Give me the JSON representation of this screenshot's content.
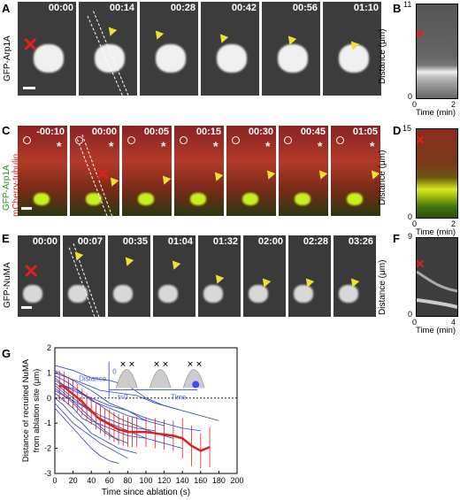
{
  "panel_letters": {
    "a": "A",
    "b": "B",
    "c": "C",
    "d": "D",
    "e": "E",
    "f": "F",
    "g": "G"
  },
  "panel_a": {
    "side_label": "GFP-Arp1A",
    "times": [
      "00:00",
      "00:14",
      "00:28",
      "00:42",
      "00:56",
      "01:10"
    ]
  },
  "panel_b": {
    "ylabel": "Distance (μm)",
    "xlabel": "Time (min)",
    "yticks": [
      "11",
      "0"
    ],
    "xticks": [
      "0",
      "2"
    ]
  },
  "panel_c": {
    "side_label_top": "GFP-Arp1A",
    "side_label_bottom": "mCherry-tubulin",
    "times": [
      "-00:10",
      "00:00",
      "00:05",
      "00:15",
      "00:30",
      "00:45",
      "01:05"
    ]
  },
  "panel_d": {
    "ylabel": "Distance (μm)",
    "xlabel": "Time (min)",
    "yticks": [
      "15",
      "0"
    ],
    "xticks": [
      "0",
      "2"
    ]
  },
  "panel_e": {
    "side_label": "GFP-NuMA",
    "times": [
      "00:00",
      "00:07",
      "00:35",
      "01:04",
      "01:32",
      "02:00",
      "02:28",
      "03:26"
    ]
  },
  "panel_f": {
    "ylabel": "Distance (μm)",
    "xlabel": "Time (min)",
    "yticks": [
      "9",
      "0"
    ],
    "xticks": [
      "0",
      "4"
    ]
  },
  "panel_g": {
    "inset_distance": "Distance",
    "inset_zero": "0",
    "inset_t0": "t=0",
    "inset_time": "Time",
    "colors": {
      "traces": "#2a3fbf",
      "mean": "#e02020"
    }
  },
  "chart_data": {
    "type": "line",
    "xlabel": "Time since ablation (s)",
    "ylabel": "Distance of recruited NuMA from ablation site (μm)",
    "xlim": [
      0,
      200
    ],
    "ylim": [
      -3,
      2
    ],
    "xticks": [
      0,
      20,
      40,
      60,
      80,
      100,
      120,
      140,
      160,
      180,
      200
    ],
    "yticks": [
      2,
      1,
      0,
      -1,
      -2,
      -3
    ],
    "mean_series": {
      "name": "mean",
      "x": [
        5,
        10,
        15,
        20,
        25,
        30,
        35,
        40,
        45,
        50,
        55,
        60,
        65,
        70,
        75,
        80,
        85,
        90,
        100,
        110,
        120,
        130,
        140,
        150,
        160,
        170
      ],
      "y": [
        0.5,
        0.45,
        0.3,
        0.15,
        0.0,
        -0.15,
        -0.35,
        -0.5,
        -0.7,
        -0.85,
        -0.95,
        -1.05,
        -1.15,
        -1.25,
        -1.3,
        -1.35,
        -1.35,
        -1.35,
        -1.35,
        -1.4,
        -1.45,
        -1.5,
        -1.6,
        -1.9,
        -2.1,
        -1.95
      ],
      "err": [
        0.6,
        0.6,
        0.55,
        0.55,
        0.55,
        0.55,
        0.55,
        0.55,
        0.55,
        0.55,
        0.55,
        0.6,
        0.6,
        0.6,
        0.6,
        0.6,
        0.6,
        0.6,
        0.6,
        0.6,
        0.6,
        0.6,
        0.8,
        0.8,
        0.7,
        0.8
      ]
    },
    "traces": [
      {
        "x": [
          0,
          20,
          40,
          60,
          80,
          100,
          120,
          150,
          180
        ],
        "y": [
          1.3,
          1.1,
          0.8,
          0.7,
          0.5,
          0.0,
          -0.3,
          -0.6,
          -0.9
        ]
      },
      {
        "x": [
          0,
          15,
          30,
          50,
          70,
          90,
          110,
          130
        ],
        "y": [
          1.0,
          0.8,
          0.6,
          0.3,
          0.2,
          0.1,
          -0.2,
          -0.4
        ]
      },
      {
        "x": [
          0,
          10,
          25,
          40,
          60,
          80,
          100
        ],
        "y": [
          0.8,
          0.5,
          0.3,
          -0.1,
          -0.4,
          -0.7,
          -0.9
        ]
      },
      {
        "x": [
          0,
          10,
          20,
          35,
          50,
          70,
          90,
          110
        ],
        "y": [
          0.6,
          0.3,
          0.0,
          -0.4,
          -0.7,
          -1.0,
          -1.2,
          -1.3
        ]
      },
      {
        "x": [
          0,
          10,
          20,
          30,
          40,
          60,
          80,
          100
        ],
        "y": [
          0.4,
          0.1,
          -0.2,
          -0.6,
          -0.9,
          -1.2,
          -1.5,
          -1.6
        ]
      },
      {
        "x": [
          0,
          10,
          20,
          30,
          45,
          60,
          80
        ],
        "y": [
          0.2,
          -0.1,
          -0.4,
          -0.8,
          -1.1,
          -1.5,
          -1.8
        ]
      },
      {
        "x": [
          0,
          10,
          20,
          30,
          40,
          55,
          70,
          90
        ],
        "y": [
          0.0,
          -0.3,
          -0.7,
          -1.0,
          -1.4,
          -1.7,
          -2.0,
          -2.2
        ]
      },
      {
        "x": [
          0,
          10,
          20,
          35,
          50,
          65,
          80
        ],
        "y": [
          -0.2,
          -0.6,
          -1.0,
          -1.4,
          -1.8,
          -2.1,
          -2.4
        ]
      },
      {
        "x": [
          0,
          10,
          20,
          30,
          40,
          50,
          60,
          70
        ],
        "y": [
          -0.4,
          -0.8,
          -1.2,
          -1.6,
          -2.0,
          -2.3,
          -2.5,
          -2.6
        ]
      },
      {
        "x": [
          0,
          15,
          30,
          50,
          70,
          90,
          110,
          130
        ],
        "y": [
          0.9,
          0.6,
          0.2,
          -0.3,
          -0.8,
          -1.1,
          -1.4,
          -1.6
        ]
      },
      {
        "x": [
          0,
          20,
          40,
          60,
          80,
          100,
          120
        ],
        "y": [
          1.1,
          0.7,
          0.3,
          -0.2,
          -0.5,
          -0.9,
          -1.1
        ]
      },
      {
        "x": [
          0,
          15,
          30,
          45,
          60,
          80,
          100,
          120,
          140
        ],
        "y": [
          0.3,
          0.0,
          -0.3,
          -0.7,
          -1.0,
          -1.3,
          -1.6,
          -1.8,
          -2.0
        ]
      },
      {
        "x": [
          0,
          10,
          25,
          40,
          55,
          70
        ],
        "y": [
          0.5,
          0.2,
          -0.3,
          -0.8,
          -1.3,
          -1.7
        ]
      },
      {
        "x": [
          0,
          10,
          20,
          40,
          60,
          80,
          100,
          120,
          140,
          160
        ],
        "y": [
          0.7,
          0.5,
          0.3,
          0.0,
          -0.3,
          -0.5,
          -0.8,
          -1.0,
          -1.2,
          -1.3
        ]
      }
    ]
  }
}
